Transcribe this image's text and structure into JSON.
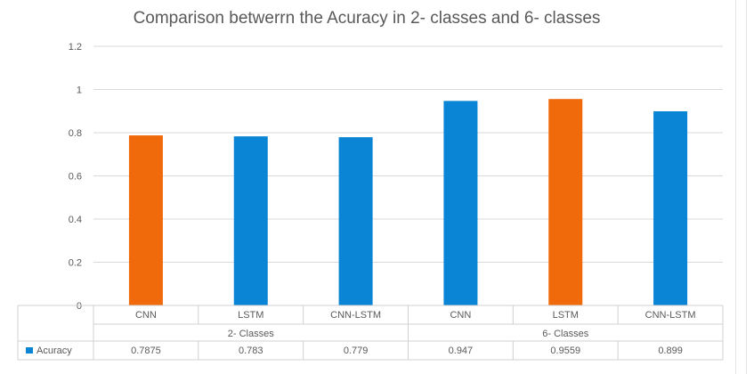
{
  "chart_data": {
    "type": "bar",
    "title": "Comparison betwerrn the Acuracy in 2- classes and 6- classes",
    "xlabel": "",
    "ylabel": "",
    "ylim": [
      0,
      1.2
    ],
    "yticks": [
      "0",
      "0.2",
      "0.4",
      "0.6",
      "0.8",
      "1",
      "1.2"
    ],
    "grid": true,
    "categories": [
      "CNN",
      "LSTM",
      "CNN-LSTM",
      "CNN",
      "LSTM",
      "CNN-LSTM"
    ],
    "groups": [
      {
        "label": "2- Classes",
        "span": [
          0,
          2
        ]
      },
      {
        "label": "6- Classes",
        "span": [
          3,
          5
        ]
      }
    ],
    "series": [
      {
        "name": "Acuracy",
        "values": [
          0.7875,
          0.783,
          0.779,
          0.947,
          0.9559,
          0.899
        ],
        "value_labels": [
          "0.7875",
          "0.783",
          "0.779",
          "0.947",
          "0.9559",
          "0.899"
        ],
        "color": "#0a84d4",
        "bar_colors": [
          "#f06a0c",
          "#0a84d4",
          "#0a84d4",
          "#0a84d4",
          "#f06a0c",
          "#0a84d4"
        ]
      }
    ],
    "legend": "data-table"
  }
}
